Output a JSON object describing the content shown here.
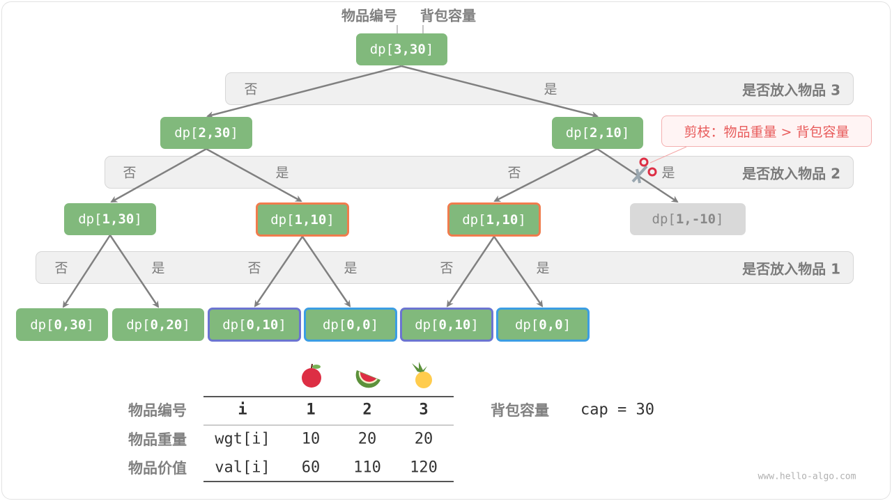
{
  "top_labels": {
    "item": "物品编号",
    "capacity": "背包容量"
  },
  "bands": [
    {
      "title": "是否放入物品 3",
      "no": "否",
      "yes": "是"
    },
    {
      "title": "是否放入物品 2",
      "no1": "否",
      "yes1": "是",
      "no2": "否",
      "yes2": "是"
    },
    {
      "title": "是否放入物品 1",
      "labels": [
        "否",
        "是",
        "否",
        "是",
        "否",
        "是"
      ]
    }
  ],
  "nodes": {
    "root": {
      "pre": "dp[",
      "args": "3,30",
      "post": "]"
    },
    "l2": [
      {
        "pre": "dp[",
        "args": "2,30",
        "post": "]"
      },
      {
        "pre": "dp[",
        "args": "2,10",
        "post": "]"
      }
    ],
    "l3": [
      {
        "pre": "dp[",
        "args": "1,30",
        "post": "]"
      },
      {
        "pre": "dp[",
        "args": "1,10",
        "post": "]"
      },
      {
        "pre": "dp[",
        "args": "1,10",
        "post": "]"
      },
      {
        "pre": "dp[",
        "args": "1,-10",
        "post": "]"
      }
    ],
    "l4": [
      {
        "pre": "dp[",
        "args": "0,30",
        "post": "]"
      },
      {
        "pre": "dp[",
        "args": "0,20",
        "post": "]"
      },
      {
        "pre": "dp[",
        "args": "0,10",
        "post": "]"
      },
      {
        "pre": "dp[",
        "args": "0,0",
        "post": "]"
      },
      {
        "pre": "dp[",
        "args": "0,10",
        "post": "]"
      },
      {
        "pre": "dp[",
        "args": "0,0",
        "post": "]"
      }
    ]
  },
  "prune_callout": "剪枝：物品重量 > 背包容量",
  "icons": {
    "prune": "scissors-icon",
    "fruits": [
      "apple-icon",
      "watermelon-icon",
      "pineapple-icon"
    ]
  },
  "colors": {
    "node": "#81b97c",
    "repeat_orange": "#f07c4d",
    "repeat_purple": "#6b74d1",
    "repeat_blue": "#3b9de3",
    "pruned": "#d9d9d9",
    "callout": "#e85b5b"
  },
  "table": {
    "row_labels": [
      "物品编号",
      "物品重量",
      "物品价值"
    ],
    "header": [
      "i",
      "1",
      "2",
      "3"
    ],
    "rows": [
      [
        "wgt[i]",
        "10",
        "20",
        "20"
      ],
      [
        "val[i]",
        "60",
        "110",
        "120"
      ]
    ]
  },
  "capacity": {
    "label": "背包容量",
    "value": "cap = 30"
  },
  "watermark": "www.hello-algo.com"
}
